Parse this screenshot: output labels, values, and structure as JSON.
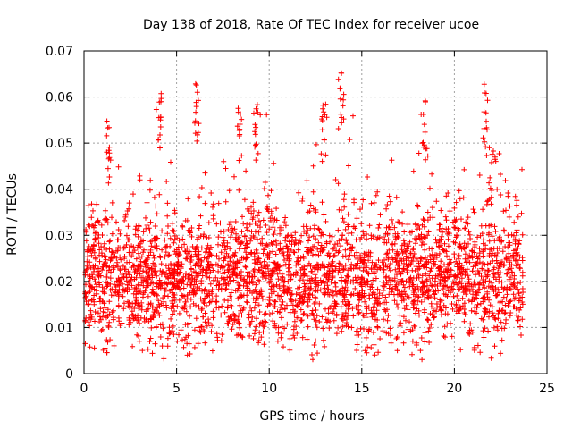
{
  "chart_data": {
    "type": "scatter",
    "title": "Day 138 of 2018, Rate Of TEC Index for receiver ucoe",
    "xlabel": "GPS time / hours",
    "ylabel": "ROTI / TECUs",
    "xlim": [
      0,
      25
    ],
    "ylim": [
      0,
      0.07
    ],
    "xticks": [
      "0",
      "5",
      "10",
      "15",
      "20",
      "25"
    ],
    "yticks": [
      "0",
      "0.01",
      "0.02",
      "0.03",
      "0.04",
      "0.05",
      "0.06",
      "0.07"
    ],
    "grid": true,
    "marker": "+",
    "color": "#ff0000",
    "x_range": [
      0.0,
      23.7
    ],
    "gaps_hours": [
      [
        7.0,
        7.1
      ],
      [
        16.0,
        16.1
      ]
    ],
    "band_low": 0.008,
    "band_high": 0.033,
    "spikes": [
      {
        "x": 1.3,
        "y": 0.055
      },
      {
        "x": 4.1,
        "y": 0.0615
      },
      {
        "x": 6.1,
        "y": 0.064
      },
      {
        "x": 8.4,
        "y": 0.06
      },
      {
        "x": 9.3,
        "y": 0.06
      },
      {
        "x": 12.9,
        "y": 0.06
      },
      {
        "x": 13.9,
        "y": 0.067
      },
      {
        "x": 18.4,
        "y": 0.0595
      },
      {
        "x": 21.7,
        "y": 0.063
      },
      {
        "x": 22.0,
        "y": 0.05
      }
    ]
  }
}
